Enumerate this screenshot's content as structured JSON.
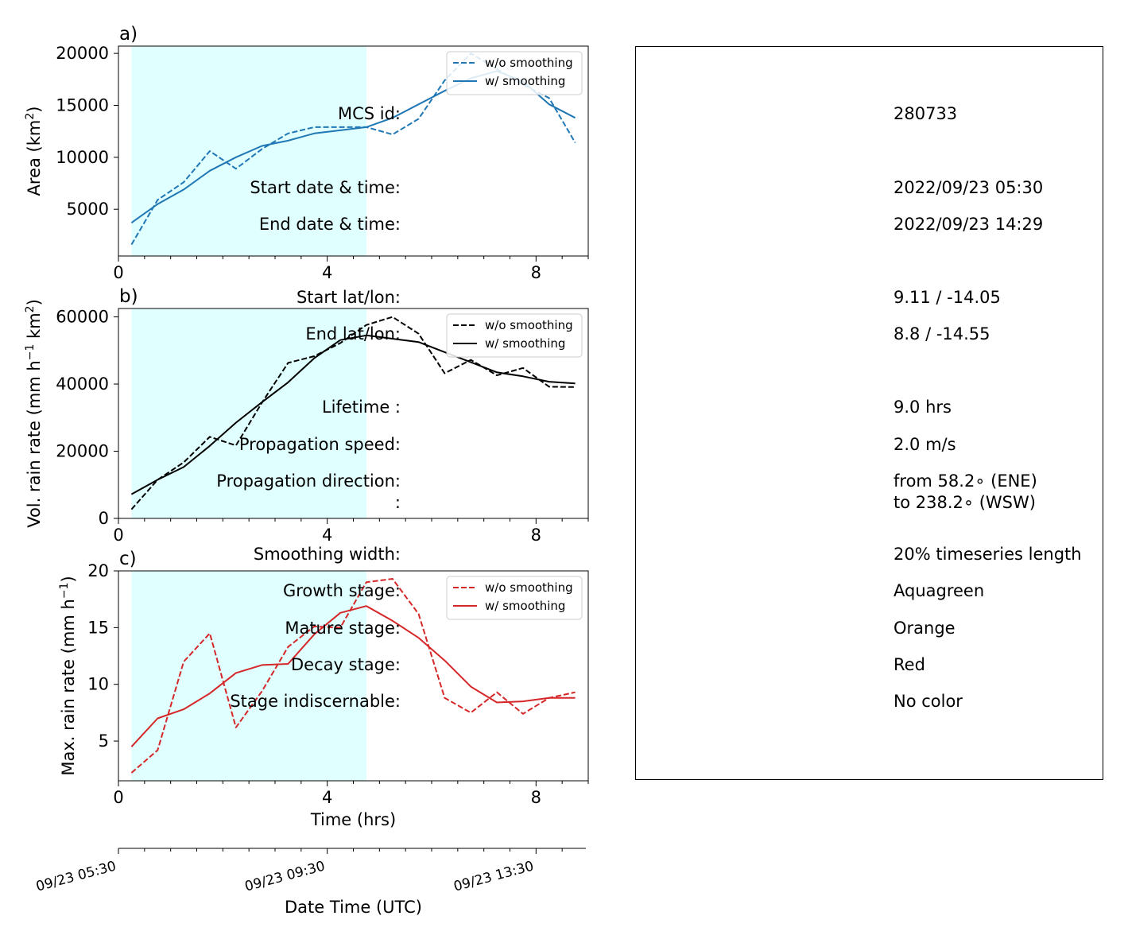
{
  "chart_data": [
    {
      "panel_label": "a)",
      "type": "line",
      "ylabel": "Area  (km$^2$)",
      "ylabel_parts": [
        "Area  (km",
        "2",
        ")"
      ],
      "xlim": [
        0,
        9
      ],
      "ylim": [
        500,
        20700
      ],
      "yticks": [
        5000,
        10000,
        15000,
        20000
      ],
      "xticks": [
        0,
        4,
        8
      ],
      "color": "#1f77b4",
      "shaded": {
        "x0": 0.25,
        "x1": 4.75,
        "color": "#e0ffff"
      },
      "legend": {
        "placement": "top-right",
        "entries": [
          "w/o smoothing",
          "w/ smoothing"
        ]
      },
      "x": [
        0.25,
        0.75,
        1.25,
        1.75,
        2.25,
        2.75,
        3.25,
        3.75,
        4.25,
        4.75,
        5.25,
        5.75,
        6.25,
        6.75,
        7.25,
        7.75,
        8.25,
        8.75
      ],
      "series": [
        {
          "name": "w/o smoothing",
          "style": "dashed",
          "values": [
            1600,
            5900,
            7600,
            10600,
            8900,
            10800,
            12300,
            12900,
            12900,
            12900,
            12200,
            13700,
            17400,
            20000,
            18500,
            17000,
            15700,
            11400
          ]
        },
        {
          "name": "w/ smoothing",
          "style": "solid",
          "values": [
            3700,
            5500,
            6900,
            8700,
            10000,
            11100,
            11600,
            12300,
            12600,
            12900,
            13800,
            15100,
            16400,
            17600,
            18300,
            17300,
            15100,
            13800
          ]
        }
      ]
    },
    {
      "panel_label": "b)",
      "type": "line",
      "ylabel": "Vol. rain rate (mm h$^{-1}$ km$^2$)",
      "ylabel_parts": [
        "Vol. rain rate (mm h",
        "−1",
        " km",
        "2",
        ")"
      ],
      "xlim": [
        0,
        9
      ],
      "ylim": [
        0,
        62500
      ],
      "yticks": [
        0,
        20000,
        40000,
        60000
      ],
      "xticks": [
        0,
        4,
        8
      ],
      "color": "#000000",
      "shaded": {
        "x0": 0.25,
        "x1": 4.75,
        "color": "#e0ffff"
      },
      "legend": {
        "placement": "top-right",
        "entries": [
          "w/o smoothing",
          "w/ smoothing"
        ]
      },
      "x": [
        0.25,
        0.75,
        1.25,
        1.75,
        2.25,
        2.75,
        3.25,
        3.75,
        4.25,
        4.75,
        5.25,
        5.75,
        6.25,
        6.75,
        7.25,
        7.75,
        8.25,
        8.75
      ],
      "series": [
        {
          "name": "w/o smoothing",
          "style": "dashed",
          "values": [
            2700,
            11500,
            16700,
            24300,
            21700,
            34500,
            46300,
            48300,
            52200,
            57600,
            60000,
            55000,
            43200,
            47200,
            42600,
            44800,
            39200,
            39100
          ]
        },
        {
          "name": "w/ smoothing",
          "style": "solid",
          "values": [
            7200,
            11500,
            15300,
            21600,
            28500,
            34600,
            40500,
            47700,
            53100,
            54500,
            53500,
            52500,
            49500,
            46500,
            43500,
            42300,
            40700,
            40200
          ]
        }
      ]
    },
    {
      "panel_label": "c)",
      "type": "line",
      "ylabel": "Max. rain rate  (mm h$^{-1}$)",
      "ylabel_parts": [
        "Max. rain rate  (mm h",
        "−1",
        ")"
      ],
      "xlabel": "Time (hrs)",
      "xlim": [
        0,
        9
      ],
      "ylim": [
        1.5,
        20
      ],
      "yticks": [
        5,
        10,
        15,
        20
      ],
      "xticks": [
        0,
        4,
        8
      ],
      "color": "#d62728",
      "shaded": {
        "x0": 0.25,
        "x1": 4.75,
        "color": "#e0ffff"
      },
      "legend": {
        "placement": "top-right",
        "entries": [
          "w/o smoothing",
          "w/ smoothing"
        ]
      },
      "x": [
        0.25,
        0.75,
        1.25,
        1.75,
        2.25,
        2.75,
        3.25,
        3.75,
        4.25,
        4.75,
        5.25,
        5.75,
        6.25,
        6.75,
        7.25,
        7.75,
        8.25,
        8.75
      ],
      "series": [
        {
          "name": "w/o smoothing",
          "style": "dashed",
          "values": [
            2.2,
            4.2,
            12.0,
            14.5,
            6.2,
            9.4,
            13.3,
            15.1,
            15.0,
            19.0,
            19.3,
            16.2,
            8.8,
            7.5,
            9.3,
            7.4,
            8.8,
            9.3
          ]
        },
        {
          "name": "w/ smoothing",
          "style": "solid",
          "values": [
            4.5,
            7.0,
            7.8,
            9.2,
            11.0,
            11.7,
            11.8,
            14.4,
            16.3,
            16.9,
            15.6,
            14.1,
            12.1,
            9.8,
            8.4,
            8.5,
            8.8,
            8.8
          ]
        }
      ]
    }
  ],
  "datetime_axis": {
    "xlabel": "Date Time (UTC)",
    "tick_labels": [
      "09/23 05:30",
      "09/23 09:30",
      "09/23 13:30"
    ]
  },
  "info": {
    "rows": [
      {
        "label": "MCS id:",
        "value": "280733"
      },
      {
        "label": "Start date & time:",
        "value": "2022/09/23 05:30"
      },
      {
        "label": "End date & time:",
        "value": "2022/09/23 14:29"
      },
      {
        "label": "Start lat/lon:",
        "value": "9.11 / -14.05"
      },
      {
        "label": "End lat/lon:",
        "value": "8.8 / -14.55"
      },
      {
        "label": "Lifetime :",
        "value": "9.0 hrs"
      },
      {
        "label": "Propagation speed:",
        "value": "2.0 m/s"
      },
      {
        "label": "Propagation direction:",
        "value": "from  58.2∘ (ENE)"
      },
      {
        "label": ":",
        "value": "to   238.2∘ (WSW)"
      },
      {
        "label": "Smoothing width:",
        "value": "20% timeseries length"
      },
      {
        "label": "Growth stage:",
        "value": "Aquagreen"
      },
      {
        "label": "Mature stage:",
        "value": "Orange"
      },
      {
        "label": "Decay stage:",
        "value": "Red"
      },
      {
        "label": "Stage indiscernable:",
        "value": "No color"
      }
    ]
  }
}
